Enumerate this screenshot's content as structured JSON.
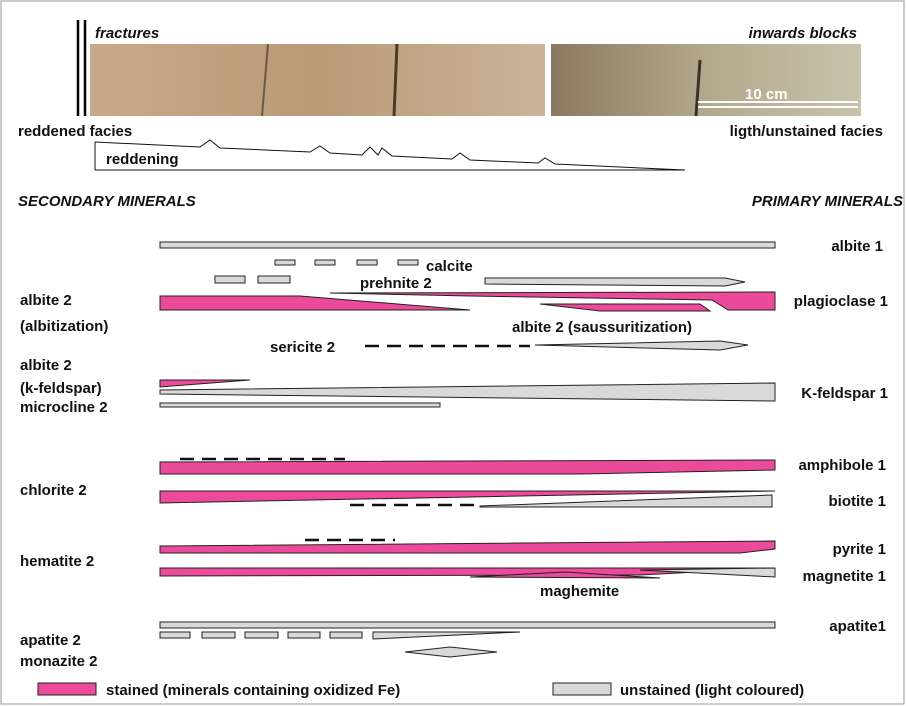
{
  "photo": {
    "left_label": "fractures",
    "right_label": "inwards blocks",
    "scale": "10 cm"
  },
  "facies": {
    "left": "reddened facies",
    "right": "ligth/unstained facies",
    "wedge": "reddening"
  },
  "headings": {
    "secondary": "SECONDARY MINERALS",
    "primary": "PRIMARY MINERALS"
  },
  "primary": [
    "albite 1",
    "plagioclase 1",
    "K-feldspar 1",
    "amphibole 1",
    "biotite 1",
    "pyrite 1",
    "magnetite 1",
    "apatite1"
  ],
  "secondary": [
    "albite 2",
    "(albitization)",
    "albite 2",
    "(k-feldspar)",
    "microcline 2",
    "chlorite 2",
    "hematite 2",
    "apatite 2",
    "monazite 2"
  ],
  "inline": [
    "calcite",
    "prehnite 2",
    "albite 2 (saussuritization)",
    "sericite 2",
    "maghemite"
  ],
  "legend": {
    "stained": "stained (minerals containing oxidized Fe)",
    "unstained": "unstained (light coloured)"
  }
}
